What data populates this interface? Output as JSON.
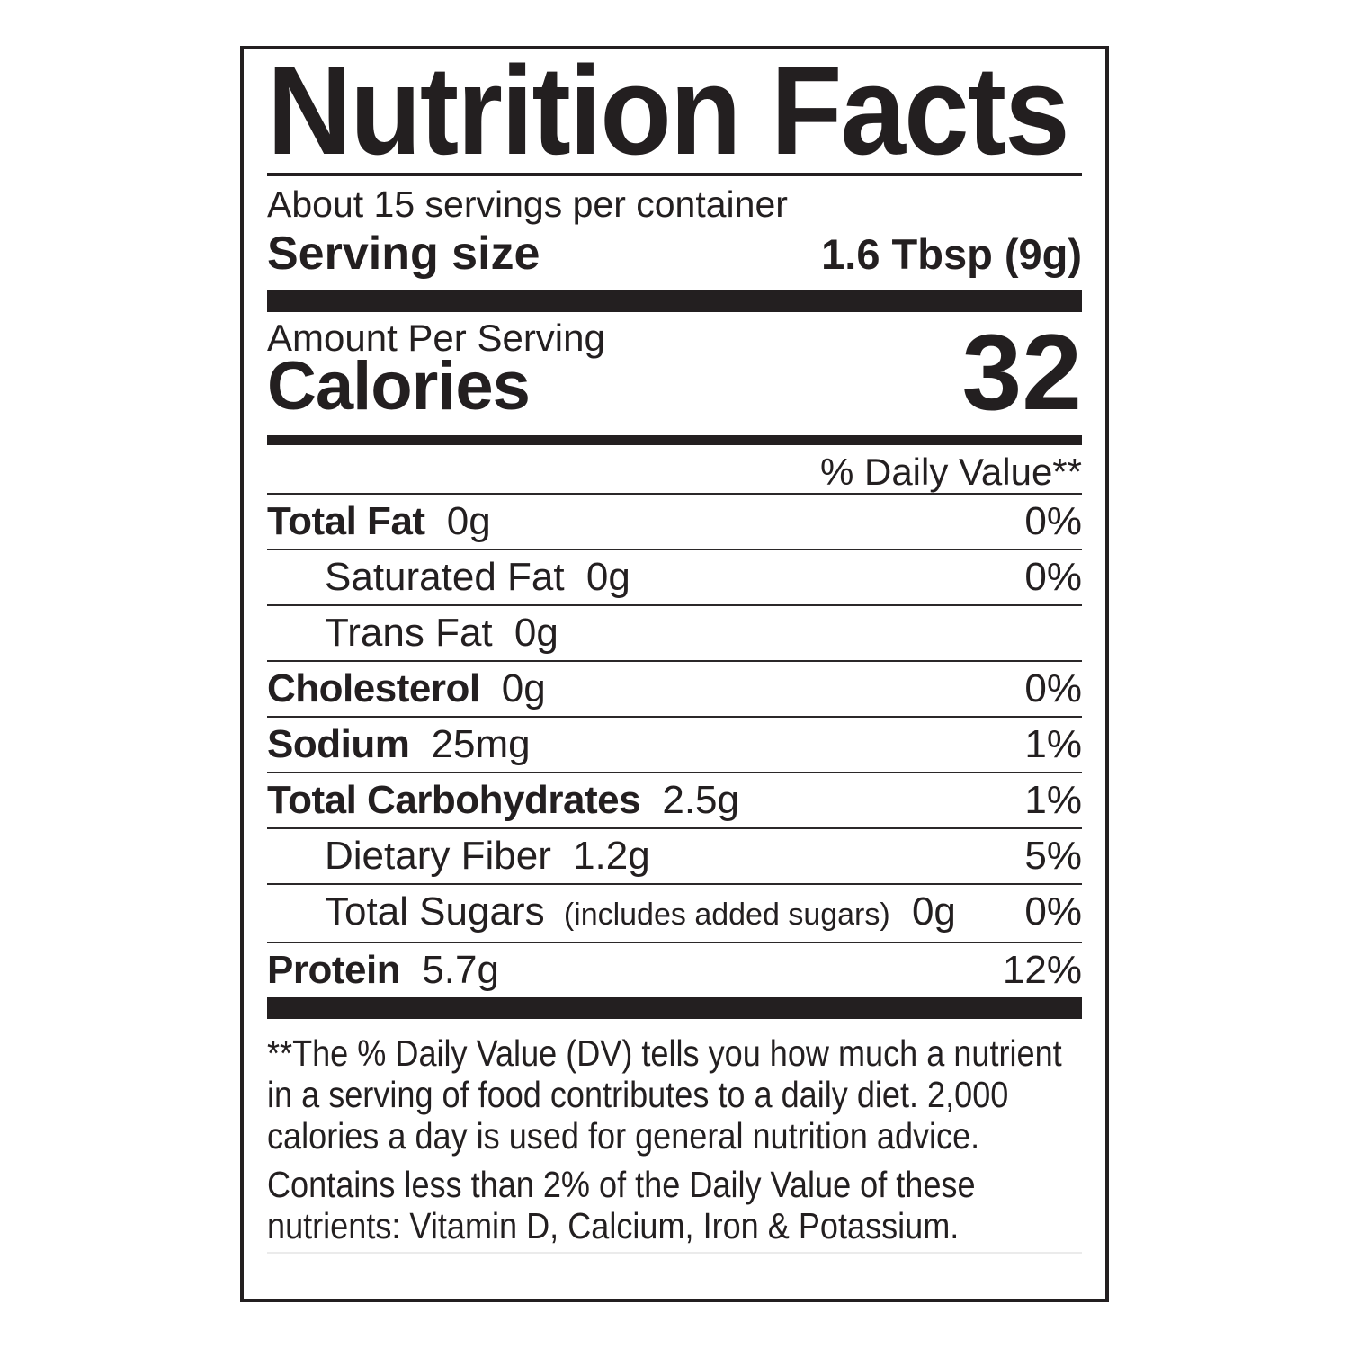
{
  "label": {
    "title": "Nutrition Facts",
    "servings_per_container": "About 15 servings per container",
    "serving_size": {
      "label": "Serving size",
      "value": "1.6 Tbsp (9g)"
    },
    "amount_per_serving": "Amount Per Serving",
    "calories": {
      "label": "Calories",
      "value": "32"
    },
    "daily_value_header": "% Daily Value**",
    "nutrients": [
      {
        "name": "Total Fat",
        "amount": "0g",
        "dv": "0%",
        "bold": true,
        "indent": 0
      },
      {
        "name": "Saturated Fat",
        "amount": "0g",
        "dv": "0%",
        "bold": false,
        "indent": 1
      },
      {
        "name": "Trans Fat",
        "amount": "0g",
        "dv": "",
        "bold": false,
        "indent": 1
      },
      {
        "name": "Cholesterol",
        "amount": "0g",
        "dv": "0%",
        "bold": true,
        "indent": 0
      },
      {
        "name": "Sodium",
        "amount": "25mg",
        "dv": "1%",
        "bold": true,
        "indent": 0
      },
      {
        "name": "Total Carbohydrates",
        "amount": "2.5g",
        "dv": "1%",
        "bold": true,
        "indent": 0
      },
      {
        "name": "Dietary Fiber",
        "amount": "1.2g",
        "dv": "5%",
        "bold": false,
        "indent": 1
      },
      {
        "name": "Total Sugars",
        "note": "(includes added sugars)",
        "amount": "0g",
        "dv": "0%",
        "bold": false,
        "indent": 1
      },
      {
        "name": "Protein",
        "amount": "5.7g",
        "dv": "12%",
        "bold": true,
        "indent": 0
      }
    ],
    "footnotes": [
      "**The % Daily Value (DV) tells you how much a nutrient in a serving of food contributes to a daily diet. 2,000 calories a day is used for general nutrition advice.",
      "Contains less than 2% of the Daily Value of these nutrients: Vitamin D, Calcium, Iron & Potassium."
    ],
    "colors": {
      "ink": "#231f20",
      "background": "#ffffff",
      "faint_rule": "#ebebeb"
    }
  }
}
